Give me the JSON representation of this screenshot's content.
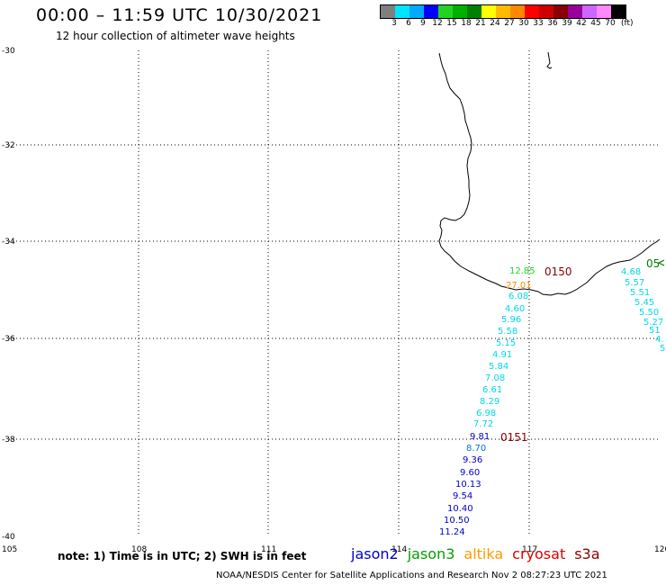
{
  "title": "00:00 – 11:59 UTC 10/30/2021",
  "subtitle": "12 hour collection of altimeter wave heights",
  "legend": {
    "colors": [
      "#7f7f7f",
      "#00e5ff",
      "#00aaff",
      "#0000ff",
      "#22d422",
      "#00b000",
      "#008000",
      "#ffff00",
      "#ffbb00",
      "#ff8800",
      "#ff0000",
      "#cc0000",
      "#880000",
      "#990099",
      "#cc66ff",
      "#ff88ff",
      "#000000"
    ],
    "labels": [
      "3",
      "6",
      "9",
      "12",
      "15",
      "18",
      "21",
      "24",
      "27",
      "30",
      "33",
      "36",
      "39",
      "42",
      "45",
      "70"
    ],
    "unit": "(ft)"
  },
  "axes": {
    "lon_labels": [
      "105",
      "108",
      "111",
      "114",
      "117",
      "120"
    ],
    "lat_labels": [
      "-30",
      "-32",
      "-34",
      "-36",
      "-38",
      "-40"
    ]
  },
  "times": [
    {
      "label": "0150",
      "color": "#880000"
    },
    {
      "label": "0151",
      "color": "#880000"
    },
    {
      "label": "05",
      "color": "#008000"
    }
  ],
  "track_main": [
    {
      "text": "12.85",
      "color": "#22d422"
    },
    {
      "text": "27.01",
      "color": "#ff8800"
    },
    {
      "text": "6.08",
      "color": "#00d8e8"
    },
    {
      "text": "4.60",
      "color": "#00d8e8"
    },
    {
      "text": "5.96",
      "color": "#00d8e8"
    },
    {
      "text": "5.58",
      "color": "#00d8e8"
    },
    {
      "text": "5.15",
      "color": "#00d8e8"
    },
    {
      "text": "4.91",
      "color": "#00d8e8"
    },
    {
      "text": "5.84",
      "color": "#00d8e8"
    },
    {
      "text": "7.08",
      "color": "#00d8e8"
    },
    {
      "text": "6.61",
      "color": "#00d8e8"
    },
    {
      "text": "8.29",
      "color": "#00d8e8"
    },
    {
      "text": "6.98",
      "color": "#00d8e8"
    },
    {
      "text": "7.72",
      "color": "#00d8e8"
    },
    {
      "text": "9.81",
      "color": "#0000cc"
    },
    {
      "text": "8.70",
      "color": "#0077dd"
    },
    {
      "text": "9.36",
      "color": "#0000cc"
    },
    {
      "text": "9.60",
      "color": "#0000cc"
    },
    {
      "text": "10.13",
      "color": "#0000cc"
    },
    {
      "text": "9.54",
      "color": "#0000cc"
    },
    {
      "text": "10.40",
      "color": "#0000cc"
    },
    {
      "text": "10.50",
      "color": "#0000cc"
    },
    {
      "text": "11.24",
      "color": "#0000cc"
    }
  ],
  "track_east": [
    {
      "text": "4.68",
      "color": "#00d8e8"
    },
    {
      "text": "5.57",
      "color": "#00d8e8"
    },
    {
      "text": "5.51",
      "color": "#00d8e8"
    },
    {
      "text": "5.45",
      "color": "#00d8e8"
    },
    {
      "text": "5.50",
      "color": "#00d8e8"
    },
    {
      "text": "5.27",
      "color": "#00d8e8"
    },
    {
      "text": "51",
      "color": "#00d8e8"
    },
    {
      "text": "4.",
      "color": "#00d8e8"
    },
    {
      "text": "5",
      "color": "#00d8e8"
    }
  ],
  "note": "note:  1) Time is in UTC;  2) SWH is in feet",
  "satellites": [
    {
      "name": "jason2",
      "color": "#0000cc"
    },
    {
      "name": "jason3",
      "color": "#00a000"
    },
    {
      "name": "altika",
      "color": "#ff9900"
    },
    {
      "name": "cryosat",
      "color": "#dd0000"
    },
    {
      "name": "s3a",
      "color": "#880000"
    }
  ],
  "credit": "NOAA/NESDIS Center for Satellite Applications and Research    Nov  2 08:27:23 UTC 2021"
}
